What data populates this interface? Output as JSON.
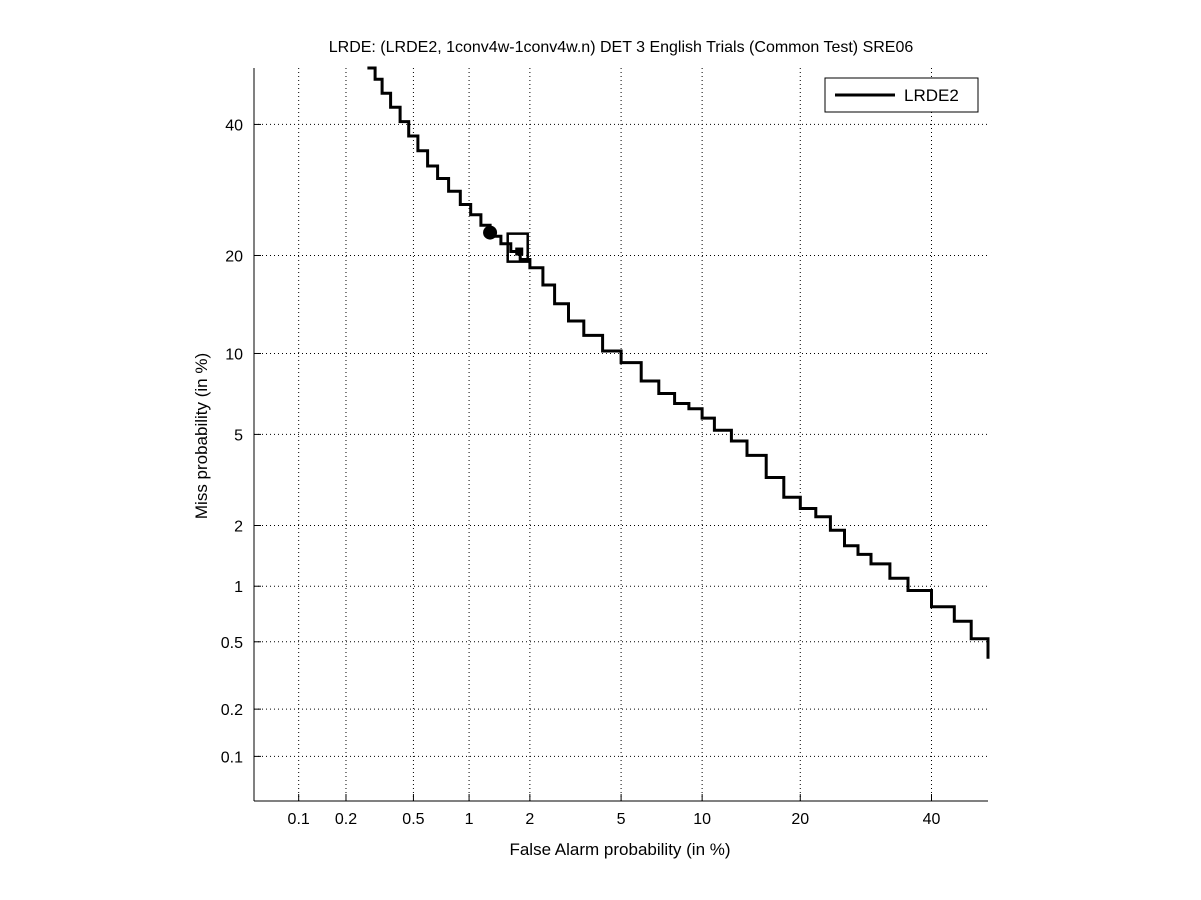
{
  "chart_data": {
    "type": "line",
    "scale": "normal-deviate (probit) on both axes",
    "title": "LRDE: (LRDE2, 1conv4w-1conv4w.n) DET 3 English Trials (Common Test) SRE06",
    "xlabel": "False Alarm probability (in %)",
    "ylabel": "Miss probability (in %)",
    "xlim": [
      0.05,
      50
    ],
    "ylim": [
      0.05,
      50
    ],
    "x_ticks": [
      0.1,
      0.2,
      0.5,
      1,
      2,
      5,
      10,
      20,
      40
    ],
    "x_tick_labels": [
      "0.1",
      "0.2",
      "0.5",
      "1",
      "2",
      "5",
      "10",
      "20",
      "40"
    ],
    "y_ticks": [
      0.1,
      0.2,
      0.5,
      1,
      2,
      5,
      10,
      20,
      40
    ],
    "y_tick_labels": [
      "0.1",
      "0.2",
      "0.5",
      "1",
      "2",
      "5",
      "10",
      "20",
      "40"
    ],
    "grid": true,
    "legend_position": "top-right",
    "series": [
      {
        "name": "LRDE2",
        "color": "#000000",
        "x": [
          0.27,
          0.3,
          0.33,
          0.37,
          0.42,
          0.47,
          0.53,
          0.6,
          0.68,
          0.78,
          0.9,
          1.02,
          1.15,
          1.28,
          1.45,
          1.62,
          1.8,
          2.0,
          2.3,
          2.6,
          3.0,
          3.5,
          4.2,
          5.0,
          6.0,
          7.0,
          8.0,
          9.0,
          10.0,
          11.0,
          12.5,
          14.0,
          16.0,
          18.0,
          20.0,
          22.0,
          24.0,
          26.0,
          28.0,
          30.0,
          33.0,
          36.0,
          40.0,
          44.0,
          47.0,
          50.0
        ],
        "y": [
          50.0,
          48.0,
          45.5,
          43.0,
          40.5,
          38.0,
          35.5,
          33.0,
          31.0,
          29.0,
          27.0,
          25.5,
          24.0,
          22.5,
          21.5,
          20.5,
          19.5,
          18.5,
          16.5,
          14.5,
          12.8,
          11.5,
          10.2,
          9.3,
          8.0,
          7.2,
          6.6,
          6.3,
          5.8,
          5.2,
          4.7,
          4.1,
          3.3,
          2.7,
          2.4,
          2.2,
          1.9,
          1.6,
          1.45,
          1.3,
          1.1,
          0.95,
          0.78,
          0.65,
          0.52,
          0.4
        ]
      }
    ],
    "markers": [
      {
        "shape": "filled-circle",
        "x": 1.28,
        "y": 23.0
      },
      {
        "shape": "open-square",
        "x": 1.75,
        "y": 21.0
      },
      {
        "shape": "filled-square",
        "x": 1.78,
        "y": 20.5
      }
    ]
  }
}
